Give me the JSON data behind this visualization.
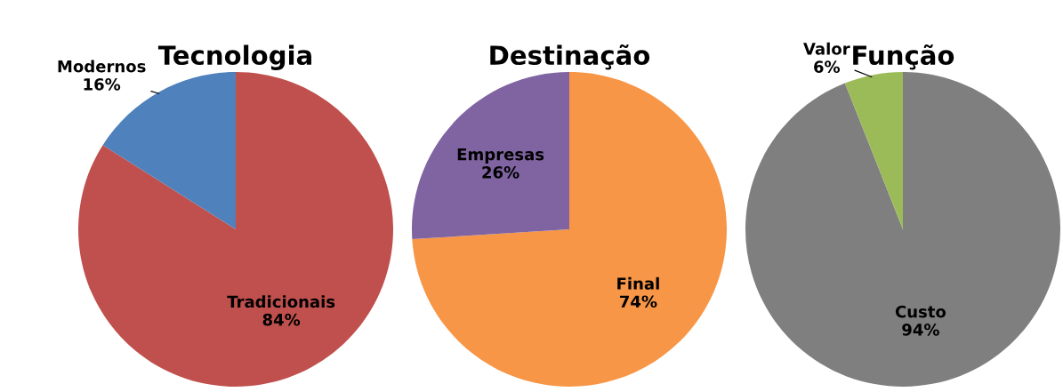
{
  "chart_data": [
    {
      "type": "pie",
      "title": "Tecnologia",
      "categories": [
        "Tradicionais",
        "Modernos"
      ],
      "values": [
        84,
        16
      ],
      "value_labels": [
        "84%",
        "16%"
      ],
      "colors": [
        "#c0504d",
        "#4f81bd"
      ]
    },
    {
      "type": "pie",
      "title": "Destinação",
      "categories": [
        "Final",
        "Empresas"
      ],
      "values": [
        74,
        26
      ],
      "value_labels": [
        "74%",
        "26%"
      ],
      "colors": [
        "#f79646",
        "#8064a2"
      ]
    },
    {
      "type": "pie",
      "title": "Função",
      "categories": [
        "Custo",
        "Valor"
      ],
      "values": [
        94,
        6
      ],
      "value_labels": [
        "94%",
        "6%"
      ],
      "colors": [
        "#7f7f7f",
        "#9bbb59"
      ]
    }
  ]
}
